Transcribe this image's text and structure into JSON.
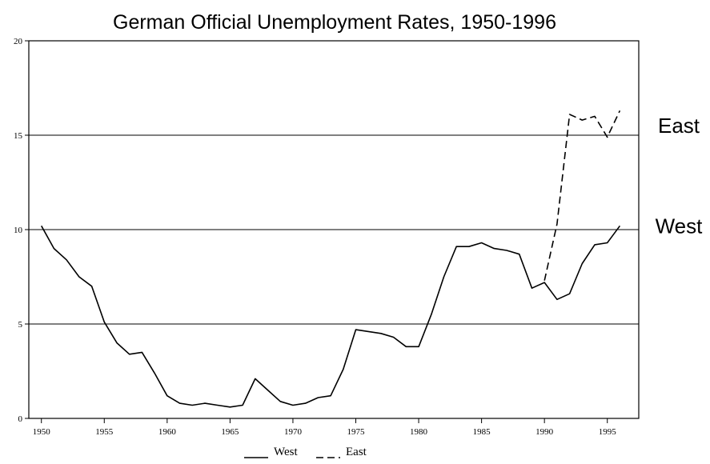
{
  "chart_data": {
    "type": "line",
    "title": "German Official Unemployment Rates, 1950-1996",
    "xlabel": "",
    "ylabel": "",
    "xlim": [
      1949,
      1997.5
    ],
    "ylim": [
      0,
      20
    ],
    "xticks": [
      1950,
      1955,
      1960,
      1965,
      1970,
      1975,
      1980,
      1985,
      1990,
      1995
    ],
    "yticks": [
      0,
      5,
      10,
      15,
      20
    ],
    "grid": "horizontal at 5, 10, 15",
    "legend": "bottom-center",
    "series": [
      {
        "name": "West",
        "style": "solid",
        "x": [
          1950,
          1951,
          1952,
          1953,
          1954,
          1955,
          1956,
          1957,
          1958,
          1959,
          1960,
          1961,
          1962,
          1963,
          1964,
          1965,
          1966,
          1967,
          1968,
          1969,
          1970,
          1971,
          1972,
          1973,
          1974,
          1975,
          1976,
          1977,
          1978,
          1979,
          1980,
          1981,
          1982,
          1983,
          1984,
          1985,
          1986,
          1987,
          1988,
          1989,
          1990,
          1991,
          1992,
          1993,
          1994,
          1995,
          1996
        ],
        "y": [
          10.2,
          9.0,
          8.4,
          7.5,
          7.0,
          5.1,
          4.0,
          3.4,
          3.5,
          2.4,
          1.2,
          0.8,
          0.7,
          0.8,
          0.7,
          0.6,
          0.7,
          2.1,
          1.5,
          0.9,
          0.7,
          0.8,
          1.1,
          1.2,
          2.6,
          4.7,
          4.6,
          4.5,
          4.3,
          3.8,
          3.8,
          5.5,
          7.5,
          9.1,
          9.1,
          9.3,
          9.0,
          8.9,
          8.7,
          6.9,
          7.2,
          6.3,
          6.6,
          8.2,
          9.2,
          9.3,
          10.2
        ]
      },
      {
        "name": "East",
        "style": "dashed",
        "x": [
          1990,
          1991,
          1992,
          1993,
          1994,
          1995,
          1996
        ],
        "y": [
          7.3,
          10.3,
          16.1,
          15.8,
          16.0,
          14.9,
          16.3
        ]
      }
    ],
    "annotations": [
      {
        "text": "East",
        "y": 15.5
      },
      {
        "text": "West",
        "y": 10.2
      }
    ]
  }
}
